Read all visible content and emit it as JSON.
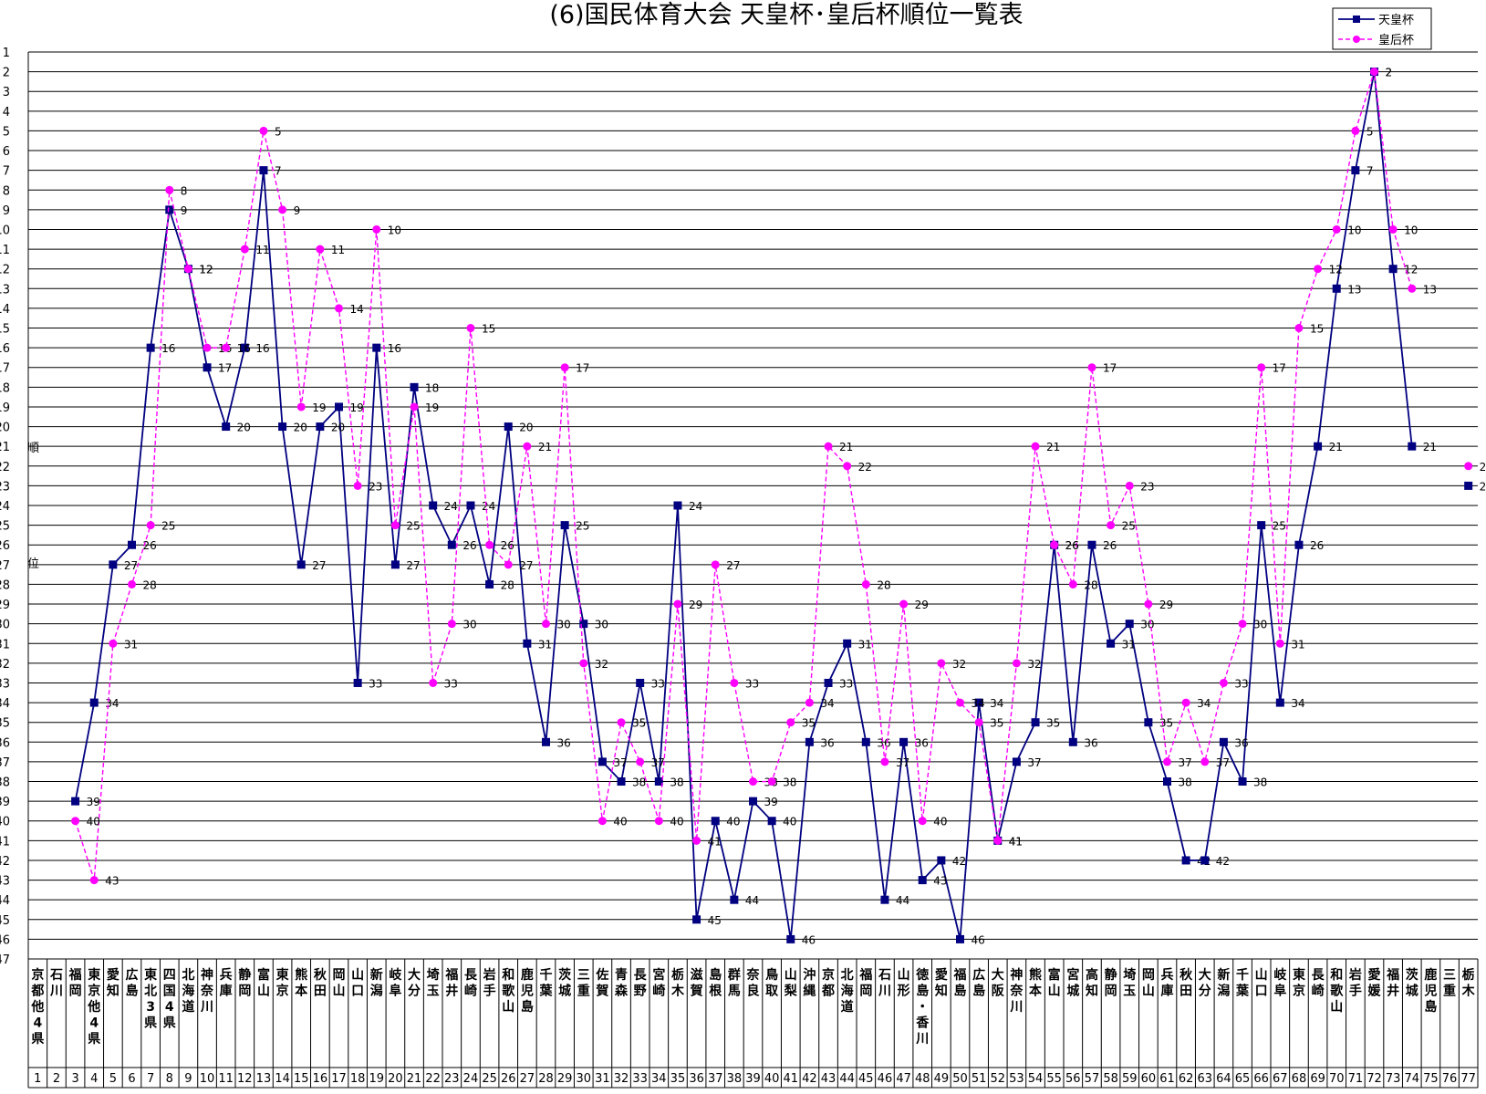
{
  "chart_data": {
    "type": "line",
    "title": "(6)国民体育大会  天皇杯･皇后杯順位一覧表",
    "ylabel": "順位",
    "ylim": [
      1,
      47
    ],
    "y_reversed": true,
    "grid": true,
    "legend_position": "top-right",
    "x": [
      1,
      2,
      3,
      4,
      5,
      6,
      7,
      8,
      9,
      10,
      11,
      12,
      13,
      14,
      15,
      16,
      17,
      18,
      19,
      20,
      21,
      22,
      23,
      24,
      25,
      26,
      27,
      28,
      29,
      30,
      31,
      32,
      33,
      34,
      35,
      36,
      37,
      38,
      39,
      40,
      41,
      42,
      43,
      44,
      45,
      46,
      47,
      48,
      49,
      50,
      51,
      52,
      53,
      54,
      55,
      56,
      57,
      58,
      59,
      60,
      61,
      62,
      63,
      64,
      65,
      66,
      67,
      68,
      69,
      70,
      71,
      72,
      73,
      74,
      75,
      76,
      77
    ],
    "categories": [
      "京都他4県",
      "石川",
      "福岡",
      "東京他4県",
      "愛知",
      "広島",
      "東北3県",
      "四国4県",
      "北海道",
      "神奈川",
      "兵庫",
      "静岡",
      "富山",
      "東京",
      "熊本",
      "秋田",
      "岡山",
      "山口",
      "新潟",
      "岐阜",
      "大分",
      "埼玉",
      "福井",
      "長崎",
      "岩手",
      "和歌山",
      "鹿児島",
      "千葉",
      "茨城",
      "三重",
      "佐賀",
      "青森",
      "長野",
      "宮崎",
      "栃木",
      "滋賀",
      "島根",
      "群馬",
      "奈良",
      "鳥取",
      "山梨",
      "沖縄",
      "京都",
      "北海道",
      "福岡",
      "石川",
      "山形",
      "徳島・香川",
      "愛知",
      "福島",
      "広島",
      "大阪",
      "神奈川",
      "熊本",
      "富山",
      "宮城",
      "高知",
      "静岡",
      "埼玉",
      "岡山",
      "兵庫",
      "秋田",
      "大分",
      "新潟",
      "千葉",
      "山口",
      "岐阜",
      "東京",
      "長崎",
      "和歌山",
      "岩手",
      "愛媛",
      "福井",
      "茨城",
      "鹿児島",
      "三重",
      "栃木"
    ],
    "series": [
      {
        "name": "天皇杯",
        "color": "#000080",
        "line": "solid",
        "marker": "square",
        "values": [
          null,
          null,
          39,
          34,
          27,
          26,
          16,
          9,
          12,
          17,
          20,
          16,
          7,
          20,
          27,
          20,
          19,
          33,
          16,
          27,
          18,
          24,
          26,
          24,
          28,
          20,
          31,
          36,
          25,
          30,
          37,
          38,
          33,
          38,
          24,
          45,
          40,
          44,
          39,
          40,
          46,
          36,
          33,
          31,
          36,
          44,
          36,
          43,
          42,
          46,
          34,
          41,
          37,
          35,
          26,
          36,
          26,
          31,
          30,
          35,
          38,
          42,
          42,
          36,
          38,
          25,
          34,
          26,
          21,
          13,
          7,
          2,
          12,
          21,
          null,
          null,
          23
        ]
      },
      {
        "name": "皇后杯",
        "color": "#ff00ff",
        "line": "dashed",
        "marker": "circle",
        "values": [
          null,
          null,
          40,
          43,
          31,
          28,
          25,
          8,
          12,
          16,
          16,
          11,
          5,
          9,
          19,
          11,
          14,
          23,
          10,
          25,
          19,
          33,
          30,
          15,
          26,
          27,
          21,
          30,
          17,
          32,
          40,
          35,
          37,
          40,
          29,
          41,
          27,
          33,
          38,
          38,
          35,
          34,
          21,
          22,
          28,
          37,
          29,
          40,
          32,
          34,
          35,
          41,
          32,
          21,
          26,
          28,
          17,
          25,
          23,
          29,
          37,
          34,
          37,
          33,
          30,
          17,
          31,
          15,
          12,
          10,
          5,
          2,
          10,
          13,
          null,
          null,
          22
        ]
      }
    ]
  }
}
